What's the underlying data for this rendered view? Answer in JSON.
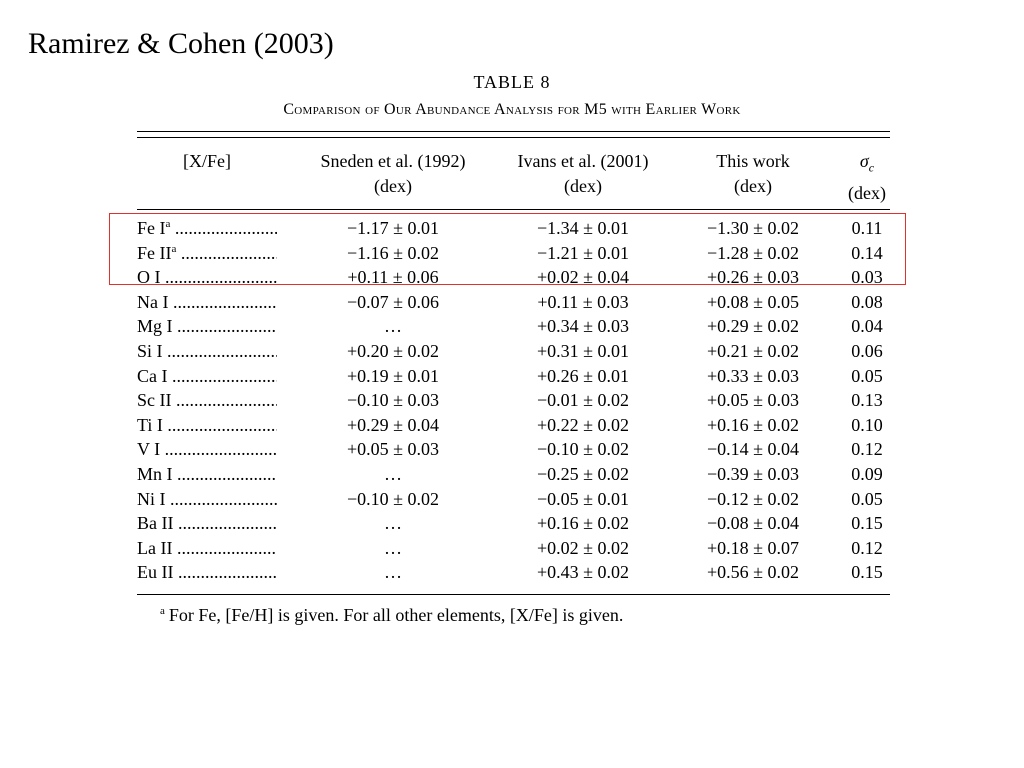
{
  "slide": {
    "title": "Ramirez & Cohen (2003)"
  },
  "table": {
    "label": "TABLE 8",
    "caption": "Comparison of Our Abundance Analysis for M5 with Earlier Work",
    "columns": [
      {
        "line1": "",
        "line2": "[X/Fe]"
      },
      {
        "line1": "Sneden et al. (1992)",
        "line2": "(dex)"
      },
      {
        "line1": "Ivans et al. (2001)",
        "line2": "(dex)"
      },
      {
        "line1": "This work",
        "line2": "(dex)"
      },
      {
        "line1": "σ",
        "line1_sub": "c",
        "line2": "(dex)"
      }
    ],
    "rows": [
      {
        "element": "Fe I",
        "mark": "a",
        "sneden": "−1.17 ± 0.01",
        "ivans": "−1.34 ± 0.01",
        "this": "−1.30 ± 0.02",
        "sigma": "0.11"
      },
      {
        "element": "Fe II",
        "mark": "a",
        "sneden": "−1.16 ± 0.02",
        "ivans": "−1.21 ± 0.01",
        "this": "−1.28 ± 0.02",
        "sigma": "0.14"
      },
      {
        "element": "O I",
        "mark": "",
        "sneden": "+0.11 ± 0.06",
        "ivans": "+0.02 ± 0.04",
        "this": "+0.26 ± 0.03",
        "sigma": "0.03"
      },
      {
        "element": "Na I",
        "mark": "",
        "sneden": "−0.07 ± 0.06",
        "ivans": "+0.11 ± 0.03",
        "this": "+0.08 ± 0.05",
        "sigma": "0.08"
      },
      {
        "element": "Mg I",
        "mark": "",
        "sneden": "…",
        "ivans": "+0.34 ± 0.03",
        "this": "+0.29 ± 0.02",
        "sigma": "0.04"
      },
      {
        "element": "Si I",
        "mark": "",
        "sneden": "+0.20 ± 0.02",
        "ivans": "+0.31 ± 0.01",
        "this": "+0.21 ± 0.02",
        "sigma": "0.06"
      },
      {
        "element": "Ca I",
        "mark": "",
        "sneden": "+0.19 ± 0.01",
        "ivans": "+0.26 ± 0.01",
        "this": "+0.33 ± 0.03",
        "sigma": "0.05"
      },
      {
        "element": "Sc II",
        "mark": "",
        "sneden": "−0.10 ± 0.03",
        "ivans": "−0.01 ± 0.02",
        "this": "+0.05 ± 0.03",
        "sigma": "0.13"
      },
      {
        "element": "Ti I",
        "mark": "",
        "sneden": "+0.29 ± 0.04",
        "ivans": "+0.22 ± 0.02",
        "this": "+0.16 ± 0.02",
        "sigma": "0.10"
      },
      {
        "element": "V I",
        "mark": "",
        "sneden": "+0.05 ± 0.03",
        "ivans": "−0.10 ± 0.02",
        "this": "−0.14 ± 0.04",
        "sigma": "0.12"
      },
      {
        "element": "Mn I",
        "mark": "",
        "sneden": "…",
        "ivans": "−0.25 ± 0.02",
        "this": "−0.39 ± 0.03",
        "sigma": "0.09"
      },
      {
        "element": "Ni I",
        "mark": "",
        "sneden": "−0.10 ± 0.02",
        "ivans": "−0.05 ± 0.01",
        "this": "−0.12 ± 0.02",
        "sigma": "0.05"
      },
      {
        "element": "Ba II",
        "mark": "",
        "sneden": "…",
        "ivans": "+0.16 ± 0.02",
        "this": "−0.08 ± 0.04",
        "sigma": "0.15"
      },
      {
        "element": "La II",
        "mark": "",
        "sneden": "…",
        "ivans": "+0.02 ± 0.02",
        "this": "+0.18 ± 0.07",
        "sigma": "0.12"
      },
      {
        "element": "Eu II",
        "mark": "",
        "sneden": "…",
        "ivans": "+0.43 ± 0.02",
        "this": "+0.56 ± 0.02",
        "sigma": "0.15"
      }
    ],
    "footnote": {
      "mark": "a",
      "text": "For Fe, [Fe/H] is given. For all other elements, [X/Fe] is given."
    },
    "highlight_color": "#e0312f"
  }
}
